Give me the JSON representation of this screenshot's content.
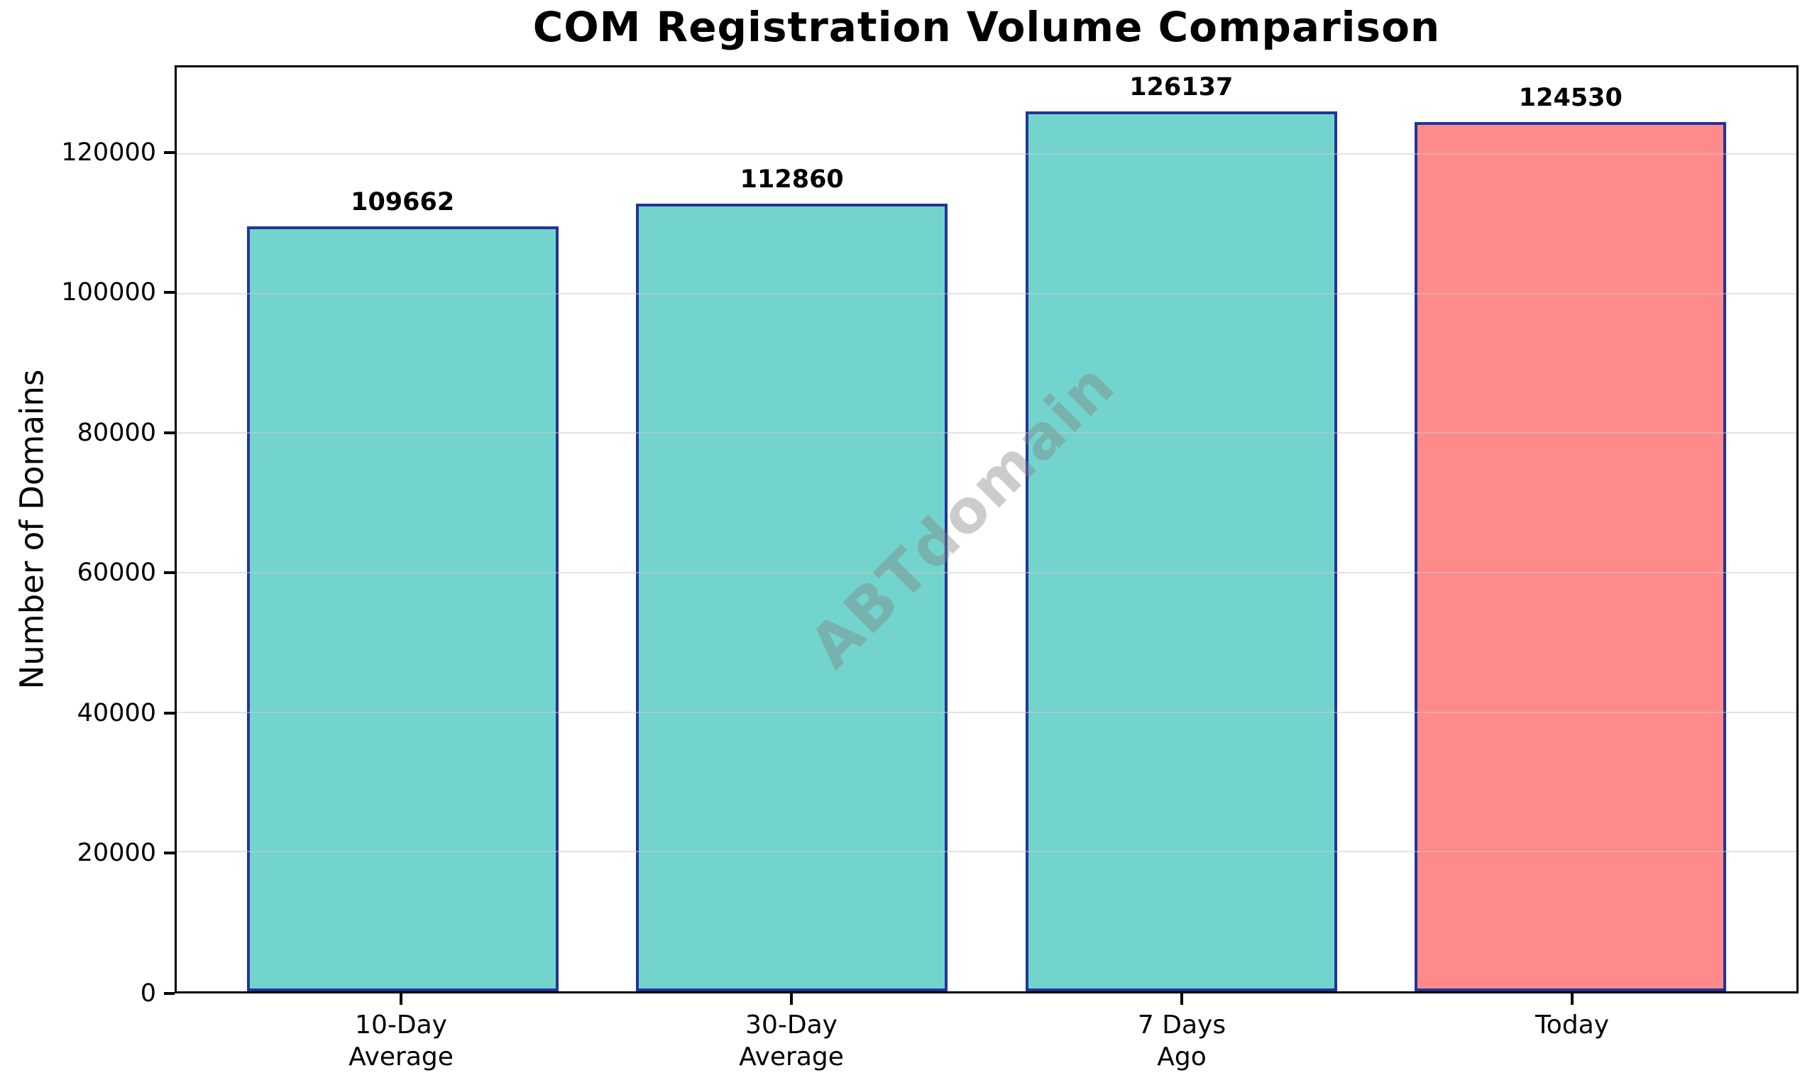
{
  "chart_data": {
    "type": "bar",
    "title": "COM Registration Volume Comparison",
    "ylabel": "Number of Domains",
    "xlabel": "",
    "categories": [
      "10-Day\nAverage",
      "30-Day\nAverage",
      "7 Days\nAgo",
      "Today"
    ],
    "values": [
      109662,
      112860,
      126137,
      124530
    ],
    "bar_value_labels": [
      "109662",
      "112860",
      "126137",
      "124530"
    ],
    "bar_fill_colors": [
      "#72d4cd",
      "#72d4cd",
      "#72d4cd",
      "#ff8a8a"
    ],
    "bar_edge_color": "#233499",
    "bar_width_ratio": 0.8,
    "xlim": [
      -0.58,
      3.58
    ],
    "ylim": [
      0,
      132400
    ],
    "yticks": [
      0,
      20000,
      40000,
      60000,
      80000,
      100000,
      120000
    ],
    "ytick_labels": [
      "0",
      "20000",
      "40000",
      "60000",
      "80000",
      "100000",
      "120000"
    ],
    "grid": {
      "axis": "y",
      "color": "rgba(200,200,200,0.5)",
      "drawn_over_bars": true
    },
    "watermark": {
      "text": "ABTdomain",
      "rotation_deg": -45,
      "color": "rgba(128,128,128,0.4)"
    }
  }
}
